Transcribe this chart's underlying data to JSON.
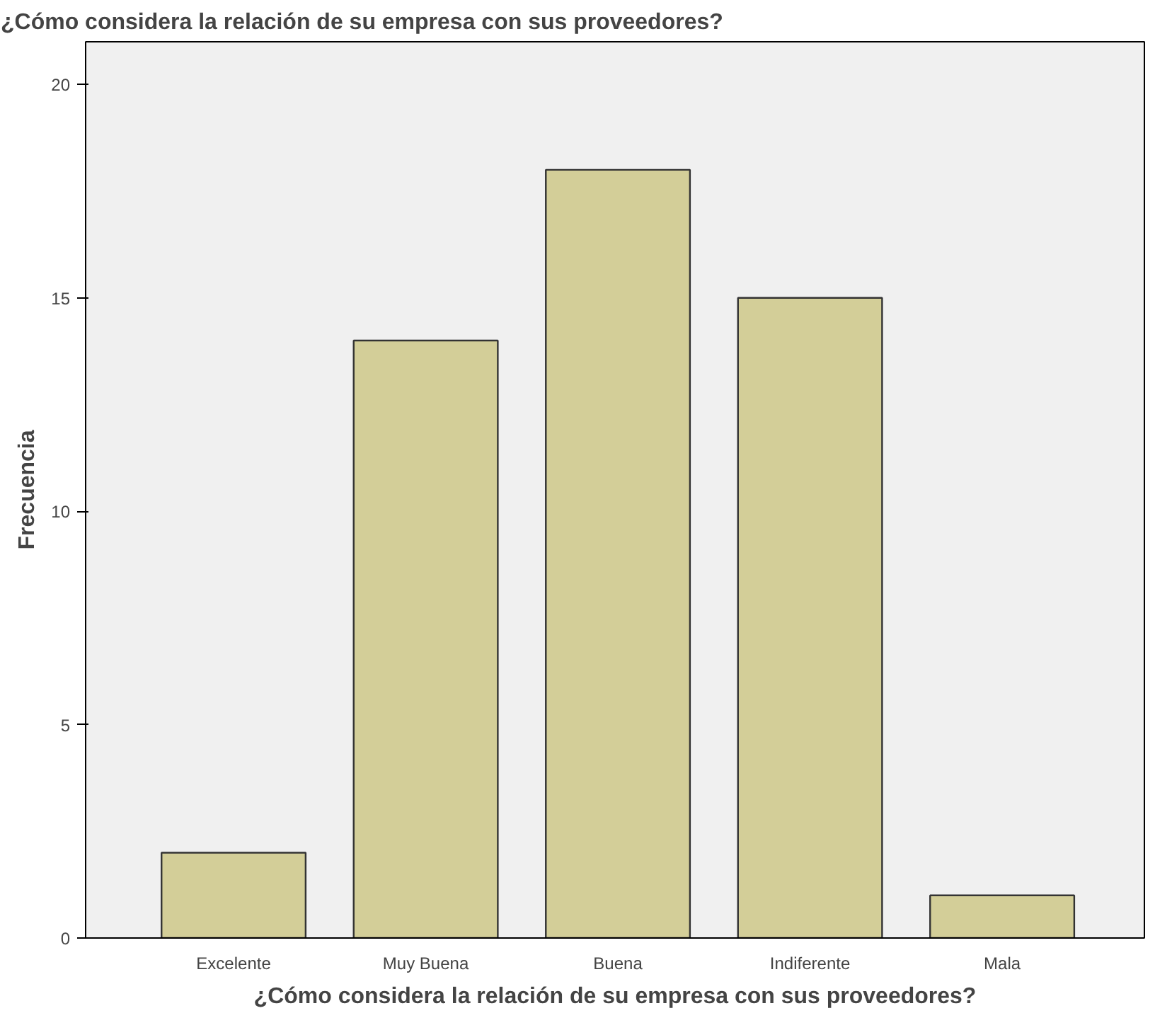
{
  "chart_data": {
    "type": "bar",
    "title": "¿Cómo considera la relación de su empresa con sus proveedores?",
    "xlabel": "¿Cómo considera la relación de su empresa con sus proveedores?",
    "ylabel": "Frecuencia",
    "categories": [
      "Excelente",
      "Muy Buena",
      "Buena",
      "Indiferente",
      "Mala"
    ],
    "values": [
      2,
      14,
      18,
      15,
      1
    ],
    "color": "#d3ce98",
    "ylim": [
      0,
      21
    ],
    "yticks": [
      0,
      5,
      10,
      15,
      20
    ],
    "grid": false
  }
}
